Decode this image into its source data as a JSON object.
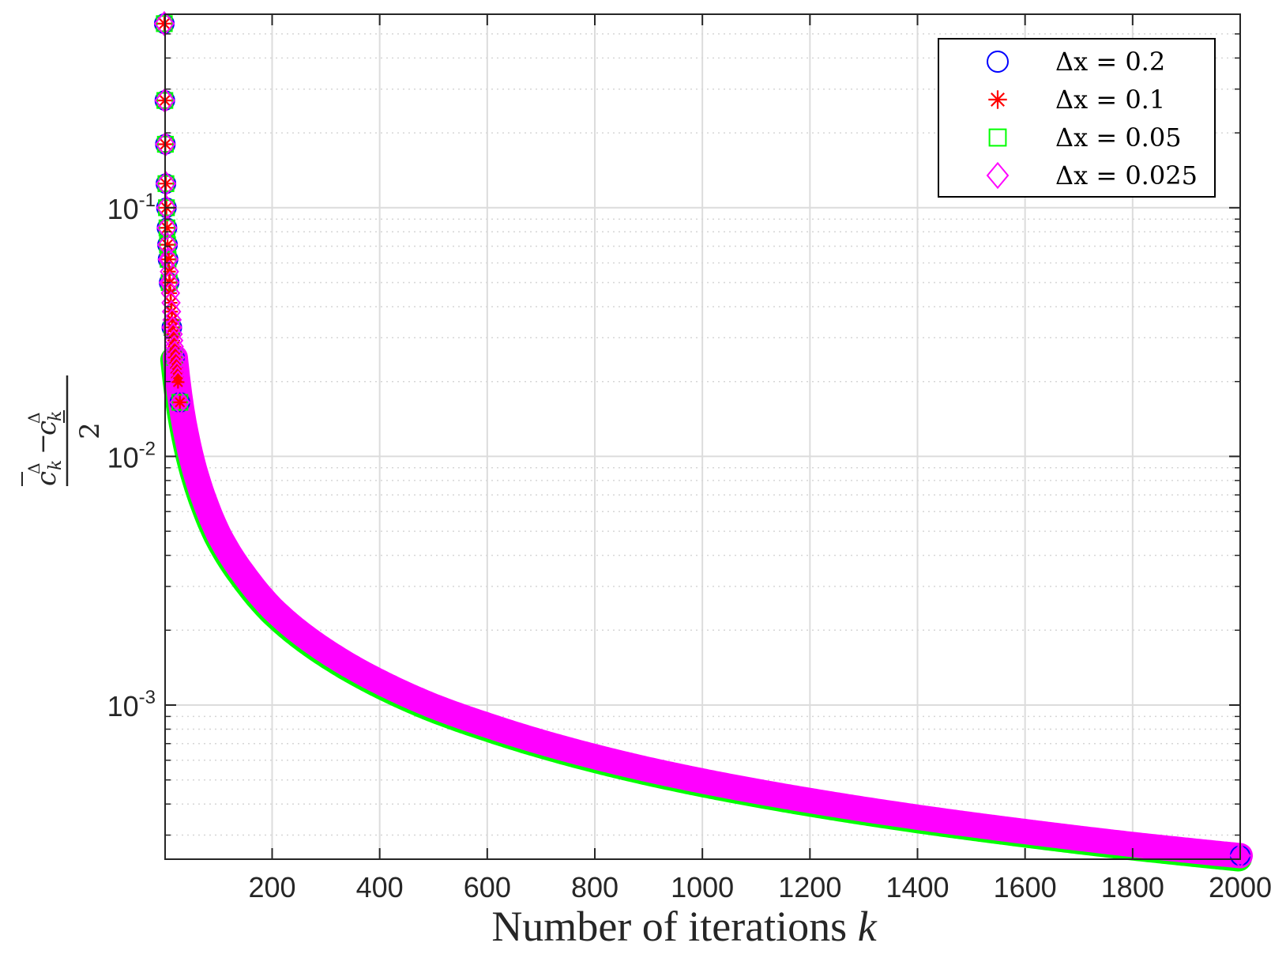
{
  "chart_data": {
    "type": "scatter",
    "xlabel": "Number of iterations",
    "xlabel_var": "k",
    "ylabel": {
      "numerator_a": "c",
      "numerator_b": "c",
      "sup": "Δ",
      "sub": "k",
      "minus": "−",
      "denominator": "2"
    },
    "xlim": [
      1,
      2000
    ],
    "ylim": [
      0.00024,
      0.6
    ],
    "yscale": "log",
    "grid": true,
    "legend_position": "top-right",
    "x_ticks": [
      "200",
      "400",
      "600",
      "800",
      "1000",
      "1200",
      "1400",
      "1600",
      "1800",
      "2000"
    ],
    "y_ticks": [
      {
        "base": "10",
        "exp": "-1"
      },
      {
        "base": "10",
        "exp": "-2"
      },
      {
        "base": "10",
        "exp": "-3"
      }
    ],
    "series": [
      {
        "name": "Δx = 0.2",
        "legend_label": "Δx = 0.2",
        "marker": "circle",
        "color": "#0000ff"
      },
      {
        "name": "Δx = 0.1",
        "legend_label": "Δx = 0.1",
        "marker": "asterisk",
        "color": "#ff0000"
      },
      {
        "name": "Δx = 0.05",
        "legend_label": "Δx = 0.05",
        "marker": "square",
        "color": "#00ff00"
      },
      {
        "name": "Δx = 0.025",
        "legend_label": "Δx = 0.025",
        "marker": "diamond",
        "color": "#ff00ff"
      }
    ],
    "x": [
      1,
      2,
      3,
      4,
      5,
      6,
      7,
      8,
      10,
      15,
      20,
      30,
      50,
      75,
      100,
      150,
      200,
      300,
      400,
      500,
      600,
      700,
      800,
      900,
      1000,
      1200,
      1400,
      1600,
      1800,
      2000
    ],
    "y": [
      0.55,
      0.27,
      0.18,
      0.125,
      0.1,
      0.083,
      0.071,
      0.062,
      0.05,
      0.033,
      0.025,
      0.0165,
      0.0099,
      0.0066,
      0.0049,
      0.0033,
      0.00245,
      0.00165,
      0.00124,
      0.00099,
      0.00083,
      0.00071,
      0.00062,
      0.00055,
      0.000495,
      0.000413,
      0.000354,
      0.00031,
      0.000275,
      0.000248
    ]
  }
}
